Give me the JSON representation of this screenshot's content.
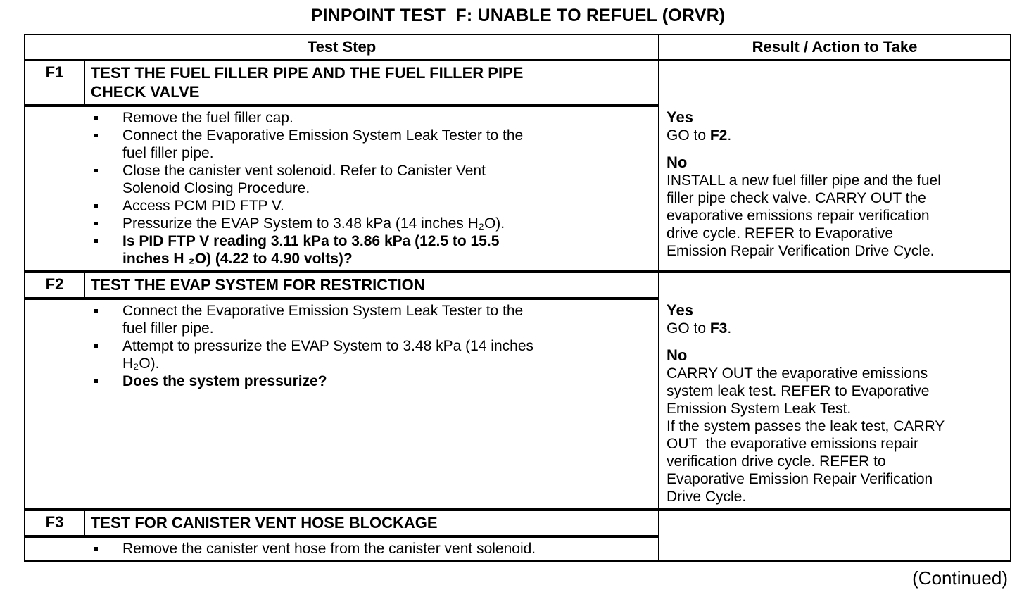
{
  "page": {
    "title": "PINPOINT TEST  F: UNABLE TO REFUEL (ORVR)",
    "continued_note": "(Continued)"
  },
  "table": {
    "header": {
      "test_step": "Test Step",
      "result": "Result / Action to Take"
    },
    "blocks": [
      {
        "id": "F1",
        "title": "TEST THE FUEL FILLER PIPE AND THE FUEL FILLER PIPE\nCHECK VALVE",
        "bullets": [
          "Remove the fuel filler cap.",
          "Connect the Evaporative Emission System Leak Tester to the\nfuel filler pipe.",
          "Close the canister vent solenoid. Refer to Canister Vent\nSolenoid Closing Procedure.",
          "Access PCM PID FTP V.",
          "Pressurize the EVAP System to 3.48 kPa (14 inches H₂O).",
          "Is PID FTP V reading 3.11 kPa to 3.86 kPa (12.5 to 15.5\ninches H ₂O) (4.22 to 4.90 volts)?"
        ],
        "result": {
          "yes_label": "Yes",
          "yes_prefix": "GO to ",
          "yes_target": "F2",
          "yes_suffix": ".",
          "no_label": "No",
          "no_action": "INSTALL a new fuel filler pipe and the fuel\nfiller pipe check valve. CARRY OUT the\nevaporative emissions repair verification\ndrive cycle. REFER to Evaporative\nEmission Repair Verification Drive Cycle."
        }
      },
      {
        "id": "F2",
        "title": "TEST THE EVAP SYSTEM FOR RESTRICTION",
        "bullets": [
          "Connect the Evaporative Emission System Leak Tester to the\nfuel filler pipe.",
          "Attempt to pressurize the EVAP System to 3.48 kPa (14 inches\nH₂O).",
          "Does the system pressurize?"
        ],
        "result": {
          "yes_label": "Yes",
          "yes_prefix": "GO to ",
          "yes_target": "F3",
          "yes_suffix": ".",
          "no_label": "No",
          "no_action": "CARRY OUT the evaporative emissions\nsystem leak test. REFER to Evaporative\nEmission System Leak Test.\nIf the system passes the leak test, CARRY\nOUT  the evaporative emissions repair\nverification drive cycle. REFER to\nEvaporative Emission Repair Verification\nDrive Cycle."
        }
      },
      {
        "id": "F3",
        "title": "TEST FOR CANISTER VENT HOSE BLOCKAGE",
        "bullets": [
          "Remove the canister vent hose from the canister vent solenoid."
        ]
      }
    ]
  }
}
